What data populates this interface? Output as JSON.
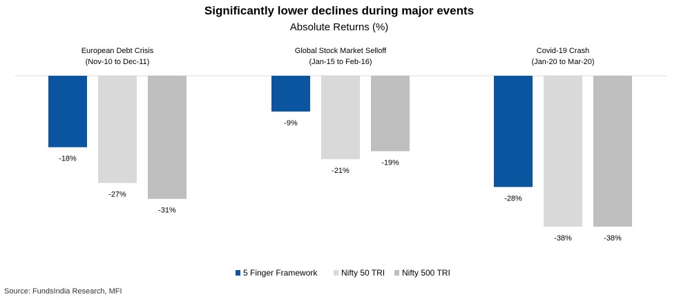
{
  "chart_data": {
    "type": "bar",
    "title": "Significantly lower declines during major events",
    "subtitle": "Absolute Returns (%)",
    "categories": [
      {
        "name": "European Debt Crisis",
        "period": "(Nov-10 to Dec-11)"
      },
      {
        "name": "Global Stock Market Selloff",
        "period": "(Jan-15 to Feb-16)"
      },
      {
        "name": "Covid-19 Crash",
        "period": "(Jan-20 to Mar-20)"
      }
    ],
    "series": [
      {
        "name": "5 Finger Framework",
        "color": "#0a54a0",
        "values": [
          -18,
          -9,
          -28
        ],
        "labels": [
          "-18%",
          "-9%",
          "-28%"
        ]
      },
      {
        "name": "Nifty 50 TRI",
        "color": "#d9d9d9",
        "values": [
          -27,
          -21,
          -38
        ],
        "labels": [
          "-27%",
          "-21%",
          "-38%"
        ]
      },
      {
        "name": "Nifty 500 TRI",
        "color": "#bfbfbf",
        "values": [
          -31,
          -19,
          -38
        ],
        "labels": [
          "-31%",
          "-19%",
          "-38%"
        ]
      }
    ],
    "ylim": [
      -40,
      0
    ],
    "grid": false,
    "legend": "bottom-center"
  },
  "source": "Source: FundsIndia Research, MFI"
}
